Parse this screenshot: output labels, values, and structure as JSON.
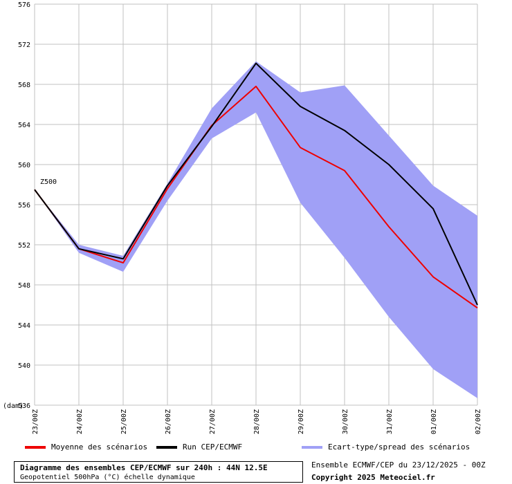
{
  "chart_data": {
    "type": "line",
    "unit_label": "(dam)",
    "series_label": "Z500",
    "ylim": [
      536,
      576
    ],
    "y_ticks": [
      576,
      572,
      568,
      564,
      560,
      556,
      552,
      548,
      544,
      540,
      536
    ],
    "x": [
      "23/00Z",
      "24/00Z",
      "25/00Z",
      "26/00Z",
      "27/00Z",
      "28/00Z",
      "29/00Z",
      "30/00Z",
      "31/00Z",
      "01/00Z",
      "02/00Z"
    ],
    "grid": true,
    "series": [
      {
        "name": "Moyenne des scénarios",
        "color": "#ee0000",
        "values": [
          557.5,
          551.6,
          550.2,
          557.6,
          563.9,
          567.8,
          561.7,
          559.4,
          553.8,
          548.8,
          545.7
        ]
      },
      {
        "name": "Run CEP/ECMWF",
        "color": "#000000",
        "values": [
          557.5,
          551.6,
          550.6,
          557.9,
          563.8,
          570.1,
          565.8,
          563.4,
          560.0,
          555.6,
          546.0
        ]
      }
    ],
    "band": {
      "name": "Ecart-type/spread des scénarios",
      "color": "#a0a0f6",
      "upper": [
        557.5,
        552.0,
        550.9,
        558.1,
        565.6,
        570.3,
        567.2,
        567.9,
        562.9,
        557.9,
        554.9
      ],
      "lower": [
        557.5,
        551.2,
        549.3,
        556.4,
        562.6,
        565.2,
        556.2,
        550.7,
        544.8,
        539.6,
        536.7
      ]
    }
  },
  "footer": {
    "title": "Diagramme des ensembles CEP/ECMWF sur 240h : 44N 12.5E",
    "subtitle": "Geopotentiel 500hPa (°C) échelle dynamique",
    "run_info": "Ensemble ECMWF/CEP du 23/12/2025 - 00Z",
    "copyright": "Copyright 2025 Meteociel.fr"
  }
}
